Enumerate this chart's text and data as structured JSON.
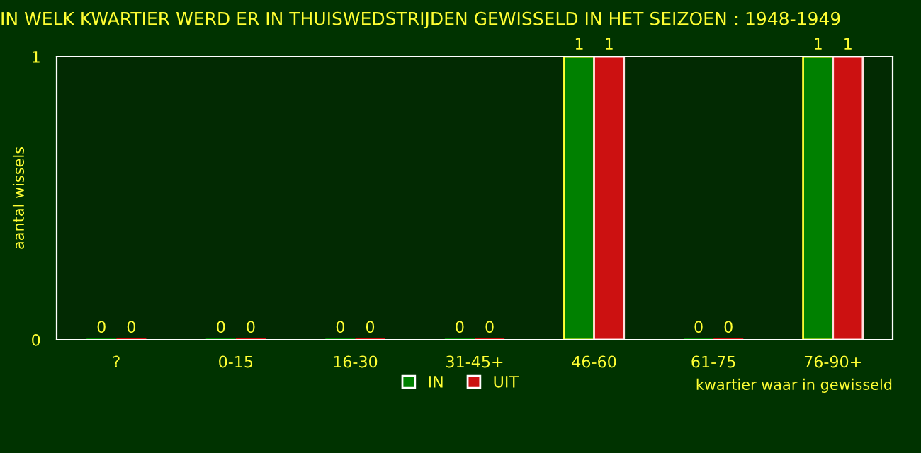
{
  "chart_data": {
    "type": "bar",
    "title": "IN WELK KWARTIER WERD ER IN THUISWEDSTRIJDEN GEWISSELD IN HET SEIZOEN : 1948-1949",
    "xlabel": "kwartier waar in gewisseld",
    "ylabel": "aantal wissels",
    "categories": [
      "?",
      "0-15",
      "16-30",
      "31-45+",
      "46-60",
      "61-75",
      "76-90+"
    ],
    "series": [
      {
        "name": "IN",
        "color": "#008000",
        "values": [
          0,
          0,
          0,
          0,
          1,
          0,
          1
        ]
      },
      {
        "name": "UIT",
        "color": "#cc1111",
        "values": [
          0,
          0,
          0,
          0,
          1,
          0,
          1
        ]
      }
    ],
    "ylim": [
      0,
      1
    ],
    "yticks": [
      0,
      1
    ],
    "grid": false,
    "legend": "bottom",
    "data_labels": true
  }
}
